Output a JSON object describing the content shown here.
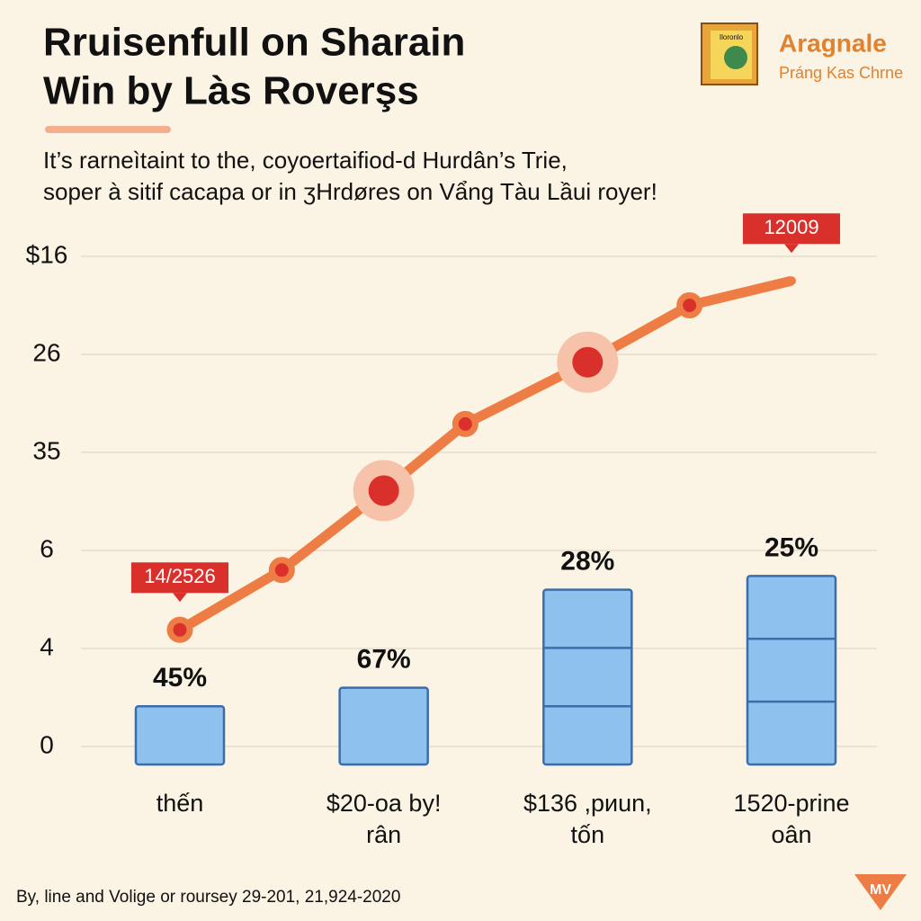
{
  "header": {
    "title_lines": [
      "Rruisenfull on Sharain",
      "Win by Làs Roverşs"
    ],
    "subtitle_lines": [
      "It’s rarneìtaint to the, coyoertaifiod-d Hurdân’s Trie,",
      "soper à sitif cacapa or in ʒHrdøres on Vẩng Tàu Lầui royer!"
    ],
    "logo_title": "Aragnale",
    "logo_subtitle": "Práng Kas Chrne",
    "logo_box_text": "Iloronlo"
  },
  "chart_data": {
    "type": "line_bar",
    "categories": [
      "thến",
      "$20-oa by!",
      "$136 ,pиun,",
      "1520-prine"
    ],
    "category_sublabels": [
      null,
      "rân",
      "tốn",
      "oân"
    ],
    "bars": {
      "color": "#8fc1ee",
      "values": [
        0.41,
        0.6,
        1.6,
        1.74
      ],
      "labels": [
        "45%",
        "67%",
        "28%",
        "25%"
      ]
    },
    "series": [
      {
        "color": "#ee7d45",
        "x": [
          0,
          0.5,
          1,
          1.4,
          2,
          2.5,
          3
        ],
        "values": [
          1.19,
          1.8,
          2.61,
          3.29,
          3.92,
          4.5,
          4.75
        ]
      }
    ],
    "highlighted_points": [
      2,
      4
    ],
    "annotations": [
      {
        "point": 0,
        "text": "14/2526"
      },
      {
        "point": 6,
        "text": "12009"
      }
    ],
    "ylim": [
      0,
      5
    ],
    "yticks": [
      0,
      {
        "value": 1,
        "label": "4"
      },
      {
        "value": 2,
        "label": "6"
      },
      {
        "value": 3,
        "label": "35"
      },
      {
        "value": 4,
        "label": "26"
      },
      {
        "value": 5,
        "label": "$16"
      }
    ],
    "xlim": [
      0,
      3
    ],
    "grid": true
  },
  "footer": {
    "note": "By, line and Volige or roursey  29-201,  21,924-2020",
    "badge": "MV"
  }
}
